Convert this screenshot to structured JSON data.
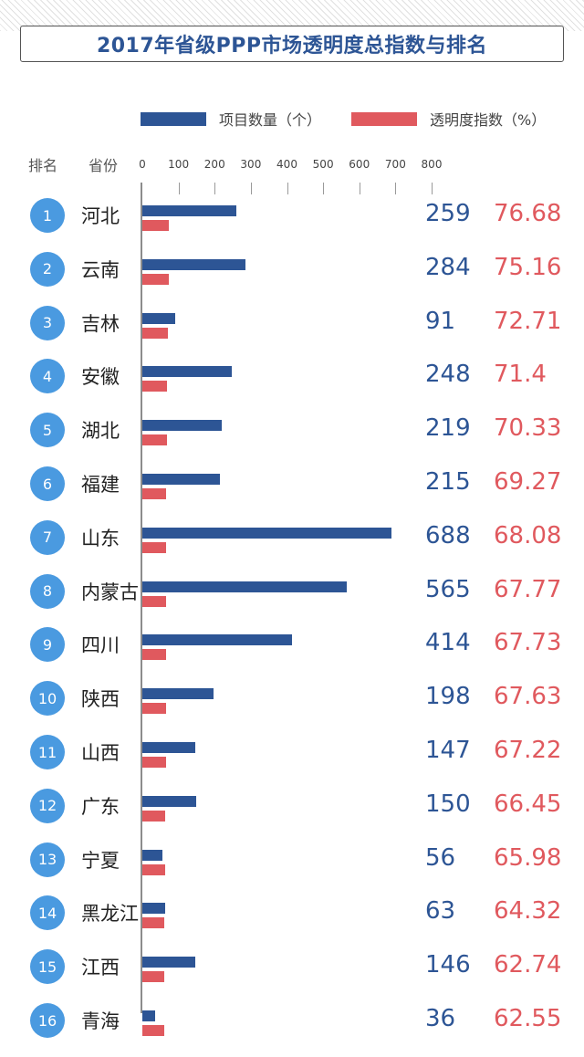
{
  "title": "2017年省级PPP市场透明度总指数与排名",
  "legend": {
    "count_label": "项目数量（个）",
    "index_label": "透明度指数（%）"
  },
  "headers": {
    "rank": "排名",
    "province": "省份"
  },
  "colors": {
    "count": "#2d5595",
    "index": "#e0595e",
    "rank_circle": "#4a9ae0"
  },
  "chart_data": {
    "type": "bar",
    "orientation": "horizontal",
    "title": "2017年省级PPP市场透明度总指数与排名",
    "x_ticks": [
      0,
      100,
      200,
      300,
      400,
      500,
      600,
      700,
      800
    ],
    "xlim": [
      0,
      800
    ],
    "series": [
      {
        "name": "项目数量（个）",
        "key": "count"
      },
      {
        "name": "透明度指数（%）",
        "key": "index"
      }
    ],
    "rows": [
      {
        "rank": "1",
        "province": "河北",
        "count": 259,
        "index": "76.68"
      },
      {
        "rank": "2",
        "province": "云南",
        "count": 284,
        "index": "75.16"
      },
      {
        "rank": "3",
        "province": "吉林",
        "count": 91,
        "index": "72.71"
      },
      {
        "rank": "4",
        "province": "安徽",
        "count": 248,
        "index": "71.4"
      },
      {
        "rank": "5",
        "province": "湖北",
        "count": 219,
        "index": "70.33"
      },
      {
        "rank": "6",
        "province": "福建",
        "count": 215,
        "index": "69.27"
      },
      {
        "rank": "7",
        "province": "山东",
        "count": 688,
        "index": "68.08"
      },
      {
        "rank": "8",
        "province": "内蒙古",
        "count": 565,
        "index": "67.77"
      },
      {
        "rank": "9",
        "province": "四川",
        "count": 414,
        "index": "67.73"
      },
      {
        "rank": "10",
        "province": "陕西",
        "count": 198,
        "index": "67.63"
      },
      {
        "rank": "11",
        "province": "山西",
        "count": 147,
        "index": "67.22"
      },
      {
        "rank": "12",
        "province": "广东",
        "count": 150,
        "index": "66.45"
      },
      {
        "rank": "13",
        "province": "宁夏",
        "count": 56,
        "index": "65.98"
      },
      {
        "rank": "14",
        "province": "黑龙江",
        "count": 63,
        "index": "64.32"
      },
      {
        "rank": "15",
        "province": "江西",
        "count": 146,
        "index": "62.74"
      },
      {
        "rank": "16",
        "province": "青海",
        "count": 36,
        "index": "62.55"
      }
    ]
  }
}
